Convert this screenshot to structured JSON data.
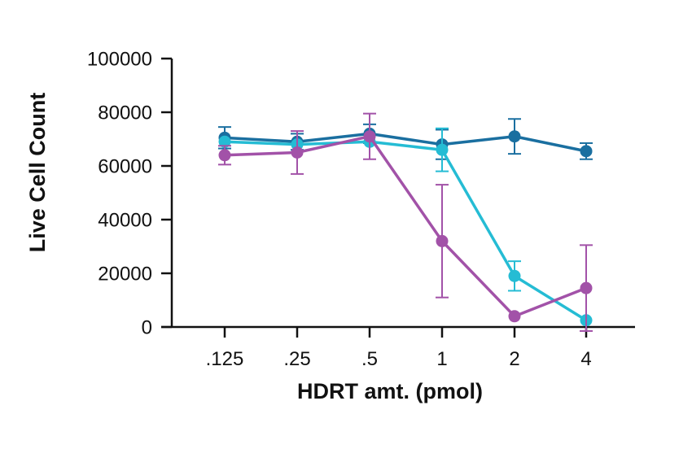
{
  "chart_data": {
    "type": "line",
    "xlabel": "HDRT amt. (pmol)",
    "ylabel": "Live Cell Count",
    "categories": [
      ".125",
      ".25",
      ".5",
      "1",
      "2",
      "4"
    ],
    "ylim": [
      0,
      100000
    ],
    "yticks": [
      0,
      20000,
      40000,
      60000,
      80000,
      100000
    ],
    "ytick_labels": [
      "0",
      "20000",
      "40000",
      "60000",
      "80000",
      "100000"
    ],
    "grid": false,
    "legend": "none",
    "series": [
      {
        "color": "#1a6fa0",
        "values": [
          70500,
          69000,
          72000,
          68000,
          71000,
          65500
        ],
        "err": [
          4000,
          3000,
          3500,
          5500,
          6500,
          3000
        ]
      },
      {
        "color": "#25bcd4",
        "values": [
          69000,
          68000,
          69000,
          66000,
          19000,
          2500
        ],
        "err": [
          0,
          0,
          0,
          8000,
          5500,
          0
        ]
      },
      {
        "color": "#a252a8",
        "values": [
          64000,
          65000,
          71000,
          32000,
          4000,
          14500
        ],
        "err": [
          3500,
          8000,
          8500,
          21000,
          0,
          16000
        ]
      }
    ]
  }
}
